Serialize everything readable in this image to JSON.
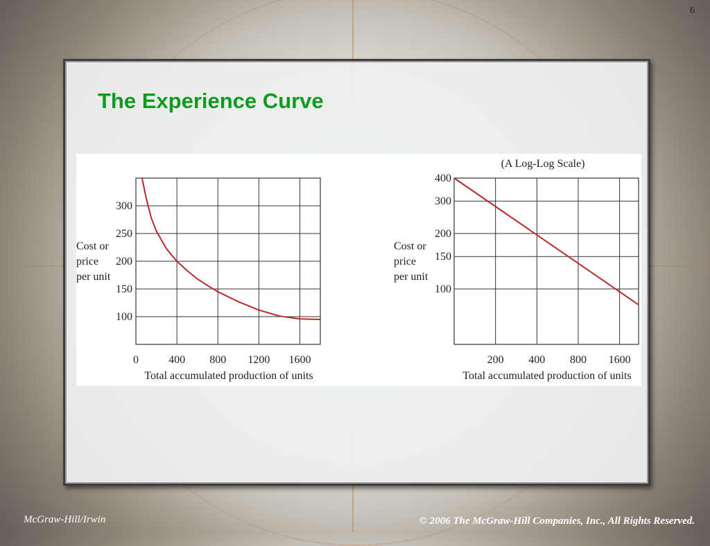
{
  "page_number": "6",
  "slide": {
    "title": "The Experience Curve"
  },
  "footer": {
    "publisher": "McGraw-Hill/Irwin",
    "copyright": "© 2006 The McGraw-Hill Companies, Inc., All Rights Reserved."
  },
  "colors": {
    "title": "#0e9a1f",
    "curve": "#b52a2a",
    "grid": "#333333"
  },
  "chart_data": [
    {
      "type": "line",
      "title": "",
      "xlabel": "Total accumulated production of units",
      "ylabel": [
        "Cost or",
        "price",
        "per unit"
      ],
      "x_ticks": [
        "0",
        "400",
        "800",
        "1200",
        "1600"
      ],
      "y_ticks": [
        "100",
        "150",
        "200",
        "250",
        "300"
      ],
      "xlim": [
        0,
        1800
      ],
      "ylim": [
        50,
        350
      ],
      "grid": true,
      "series": [
        {
          "x": [
            60,
            100,
            150,
            200,
            300,
            400,
            500,
            600,
            700,
            800,
            1000,
            1200,
            1400,
            1600,
            1800
          ],
          "y": [
            350,
            314,
            278,
            254,
            222,
            200,
            183,
            168,
            156,
            145,
            127,
            112,
            101,
            96,
            95
          ]
        }
      ]
    },
    {
      "type": "line",
      "title": "(A Log-Log Scale)",
      "xlabel": "Total accumulated production of units",
      "ylabel": [
        "Cost or",
        "price",
        "per unit"
      ],
      "x_ticks": [
        "200",
        "400",
        "800",
        "1600"
      ],
      "y_ticks": [
        "100",
        "150",
        "200",
        "300",
        "400"
      ],
      "xlim": [
        100,
        2200
      ],
      "ylim": [
        50,
        400
      ],
      "x_scale": "log",
      "y_scale": "log",
      "grid": true,
      "series": [
        {
          "x": [
            100,
            2200
          ],
          "y": [
            400,
            82
          ]
        }
      ]
    }
  ]
}
